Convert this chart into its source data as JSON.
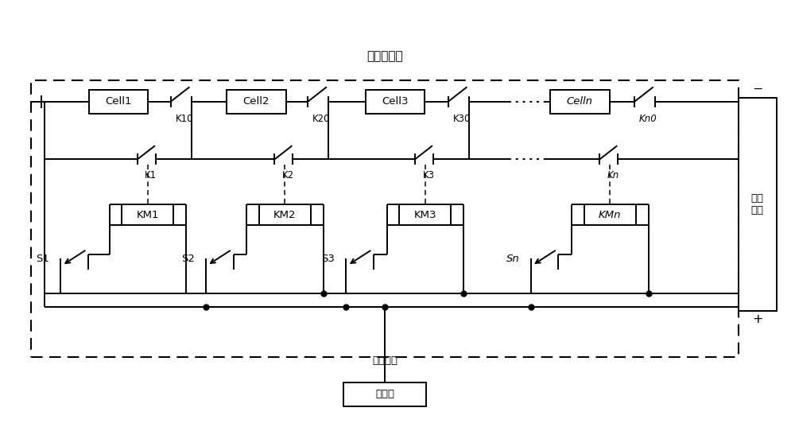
{
  "title": "故障开关组",
  "bg_color": "#ffffff",
  "text_color": "#000000",
  "figsize": [
    10.0,
    5.42
  ],
  "dpi": 100,
  "cell_labels": [
    "Cell1",
    "Cell2",
    "Cell3",
    "Celln"
  ],
  "k0_labels": [
    "K10",
    "K20",
    "K30",
    "Kn0"
  ],
  "k_labels": [
    "K1",
    "K2",
    "K3",
    "Kn"
  ],
  "km_labels": [
    "KM1",
    "KM2",
    "KM3",
    "KMn"
  ],
  "s_labels": [
    "S1",
    "S2",
    "S3",
    "Sn"
  ],
  "controller_label": "控制器",
  "fault_info_label": "故障信息",
  "dc_source_label": "直流\n电源",
  "dc_minus": "−",
  "dc_plus": "+"
}
